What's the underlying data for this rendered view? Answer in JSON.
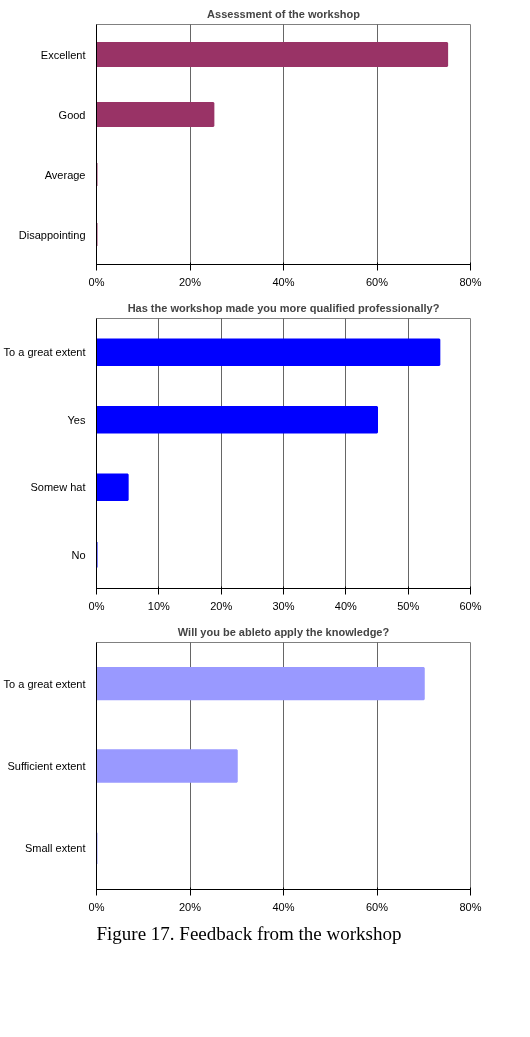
{
  "chart_data": [
    {
      "type": "bar",
      "orientation": "horizontal",
      "title": "Assessment of the workshop",
      "categories": [
        "Excellent",
        "Good",
        "Average",
        "Disappointing"
      ],
      "values": [
        75,
        25,
        0,
        0
      ],
      "color": "#993366",
      "xlim": [
        0,
        80
      ],
      "xticks": [
        {
          "value": 0,
          "label": "0%"
        },
        {
          "value": 20,
          "label": "20%"
        },
        {
          "value": 40,
          "label": "40%"
        },
        {
          "value": 60,
          "label": "60%"
        },
        {
          "value": 80,
          "label": "80%"
        }
      ],
      "grid": "x"
    },
    {
      "type": "bar",
      "orientation": "horizontal",
      "title": "Has the workshop made you more qualified professionally?",
      "categories": [
        "To a great extent",
        "Yes",
        "Somew hat",
        "No"
      ],
      "values": [
        55,
        45,
        5,
        0
      ],
      "color": "#0000ff",
      "xlim": [
        0,
        60
      ],
      "xticks": [
        {
          "value": 0,
          "label": "0%"
        },
        {
          "value": 10,
          "label": "10%"
        },
        {
          "value": 20,
          "label": "20%"
        },
        {
          "value": 30,
          "label": "30%"
        },
        {
          "value": 40,
          "label": "40%"
        },
        {
          "value": 50,
          "label": "50%"
        },
        {
          "value": 60,
          "label": "60%"
        }
      ],
      "grid": "x"
    },
    {
      "type": "bar",
      "orientation": "horizontal",
      "title": "Will you be ableto apply the knowledge?",
      "categories": [
        "To a great extent",
        "Sufficient extent",
        "Small extent"
      ],
      "values": [
        70,
        30,
        0
      ],
      "color": "#9999ff",
      "xlim": [
        0,
        80
      ],
      "xticks": [
        {
          "value": 0,
          "label": "0%"
        },
        {
          "value": 20,
          "label": "20%"
        },
        {
          "value": 40,
          "label": "40%"
        },
        {
          "value": 60,
          "label": "60%"
        },
        {
          "value": 80,
          "label": "80%"
        }
      ],
      "grid": "x",
      "annotations": [
        "Figure 17. Feedback from the workshop"
      ]
    }
  ]
}
